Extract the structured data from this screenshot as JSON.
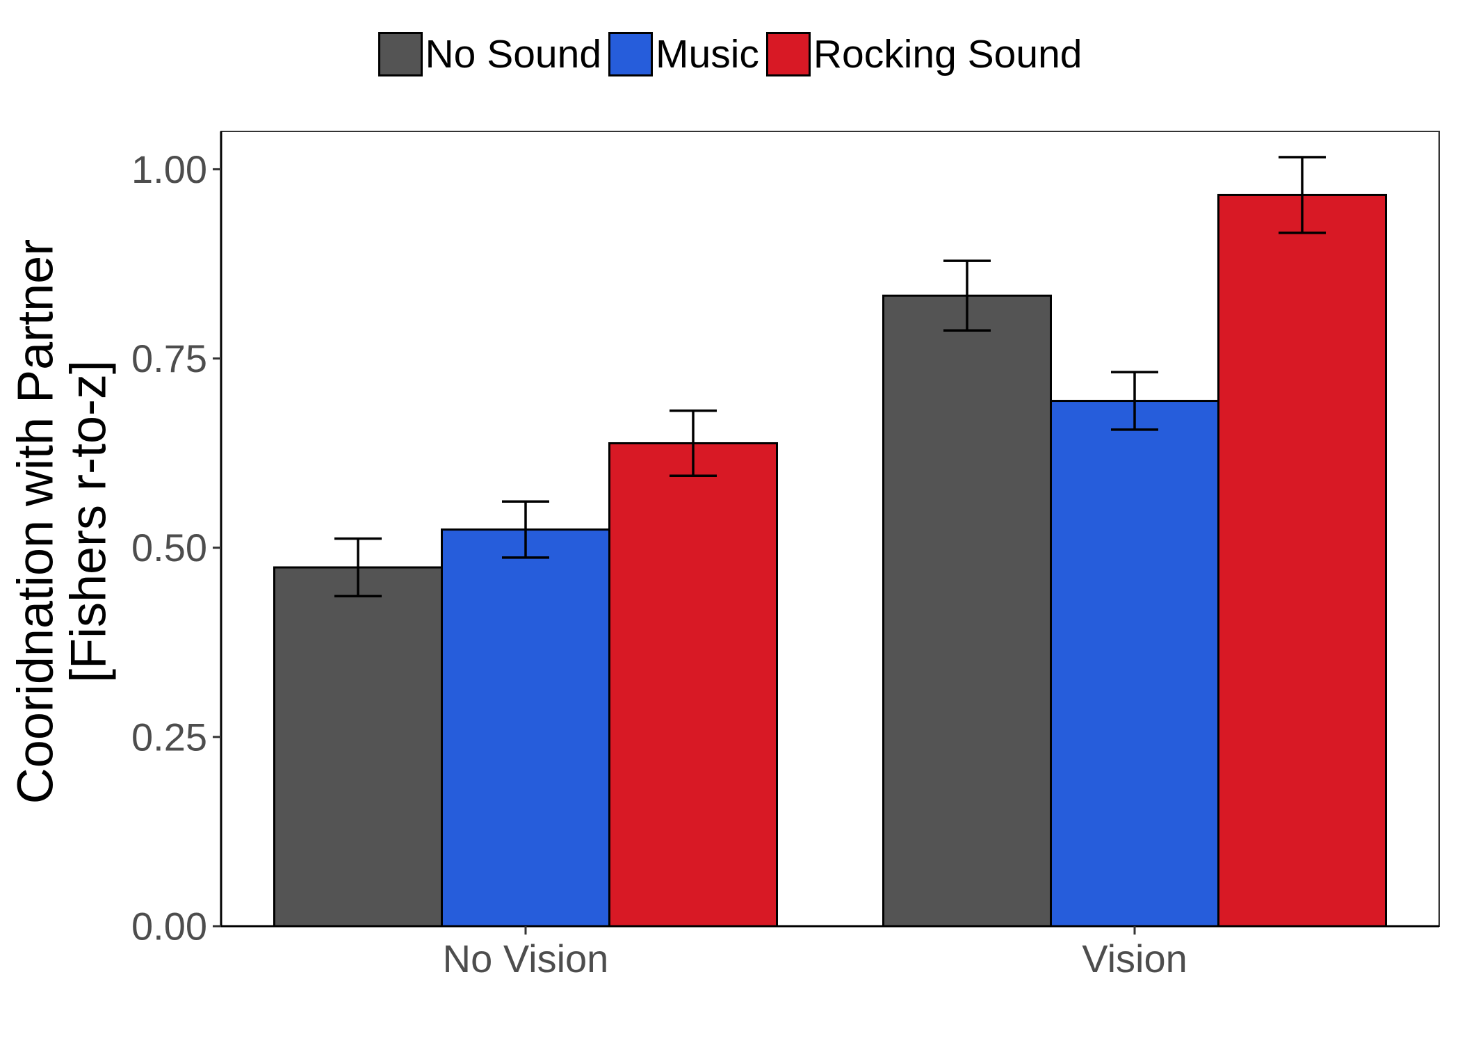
{
  "chart_data": {
    "type": "bar",
    "categories": [
      "No Vision",
      "Vision"
    ],
    "series": [
      {
        "name": "No Sound",
        "color": "#545454",
        "values": [
          0.474,
          0.833
        ],
        "error": [
          0.038,
          0.046
        ]
      },
      {
        "name": "Music",
        "color": "#265DDB",
        "values": [
          0.524,
          0.694
        ],
        "error": [
          0.037,
          0.038
        ]
      },
      {
        "name": "Rocking Sound",
        "color": "#D81925",
        "values": [
          0.638,
          0.966
        ],
        "error": [
          0.043,
          0.05
        ]
      }
    ],
    "ylabel_line1": "Cooridnation with Partner",
    "ylabel_line2": "[Fishers r-to-z]",
    "xlabel": "",
    "ylim": [
      0,
      1.05
    ],
    "yticks": [
      0,
      0.25,
      0.5,
      0.75,
      1.0
    ],
    "ytick_labels": [
      "0.00",
      "0.25",
      "0.50",
      "0.75",
      "1.00"
    ],
    "legend_position": "top",
    "grid": false
  }
}
